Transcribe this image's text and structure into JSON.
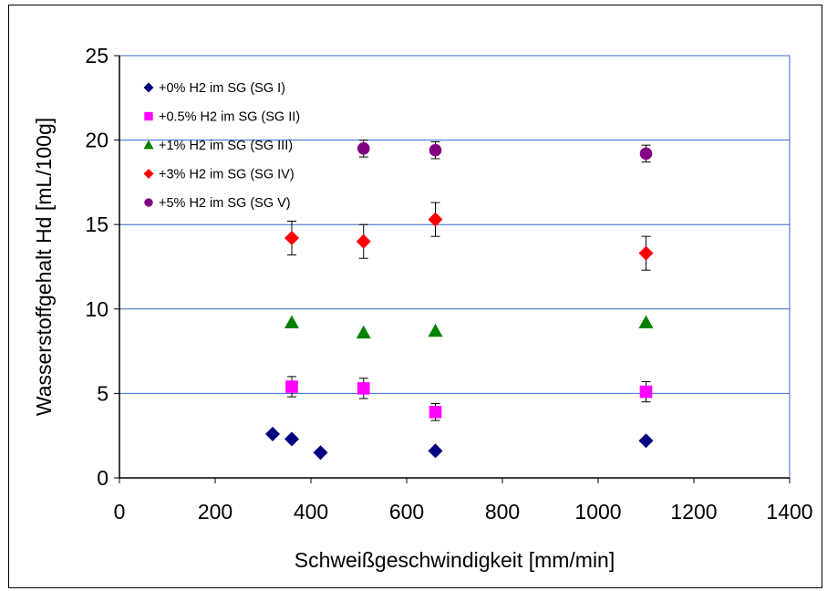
{
  "chart_data": {
    "type": "scatter",
    "xlabel": "Schweißgeschwindigkeit [mm/min]",
    "ylabel": "Wasserstoffgehalt Hd [mL/100g]",
    "xlim": [
      0,
      1400
    ],
    "ylim": [
      0,
      25
    ],
    "x_ticks": [
      0,
      200,
      400,
      600,
      800,
      1000,
      1200,
      1400
    ],
    "y_ticks": [
      0,
      5,
      10,
      15,
      20,
      25
    ],
    "x_tick_labels": [
      "0",
      "200",
      "400",
      "600",
      "800",
      "1000",
      "1200",
      "1400"
    ],
    "y_tick_labels": [
      "0",
      "5",
      "10",
      "15",
      "20",
      "25"
    ],
    "gridlines": "horizontal major",
    "legend_position": "top-left",
    "series": [
      {
        "name": "+0% H2 im SG (SG I)",
        "marker": "diamond",
        "color": "#000080",
        "points": [
          {
            "x": 320,
            "y": 2.6
          },
          {
            "x": 360,
            "y": 2.3
          },
          {
            "x": 420,
            "y": 1.5
          },
          {
            "x": 660,
            "y": 1.6
          },
          {
            "x": 1100,
            "y": 2.2
          }
        ]
      },
      {
        "name": "+0.5% H2 im SG (SG II)",
        "marker": "square",
        "color": "#FF00FF",
        "points": [
          {
            "x": 360,
            "y": 5.4,
            "err": 0.6
          },
          {
            "x": 510,
            "y": 5.3,
            "err": 0.6
          },
          {
            "x": 660,
            "y": 3.9,
            "err": 0.5
          },
          {
            "x": 1100,
            "y": 5.1,
            "err": 0.6
          }
        ]
      },
      {
        "name": "+1% H2 im SG (SG III)",
        "marker": "triangle",
        "color": "#008000",
        "points": [
          {
            "x": 360,
            "y": 9.2
          },
          {
            "x": 510,
            "y": 8.6
          },
          {
            "x": 660,
            "y": 8.7
          },
          {
            "x": 1100,
            "y": 9.2
          }
        ]
      },
      {
        "name": "+3% H2 im SG (SG IV)",
        "marker": "diamond",
        "color": "#FF0000",
        "points": [
          {
            "x": 360,
            "y": 14.2,
            "err": 1.0
          },
          {
            "x": 510,
            "y": 14.0,
            "err": 1.0
          },
          {
            "x": 660,
            "y": 15.3,
            "err": 1.0
          },
          {
            "x": 1100,
            "y": 13.3,
            "err": 1.0
          }
        ]
      },
      {
        "name": "+5% H2 im SG (SG V)",
        "marker": "circle",
        "color": "#800080",
        "points": [
          {
            "x": 510,
            "y": 19.5,
            "err": 0.5
          },
          {
            "x": 660,
            "y": 19.4,
            "err": 0.5
          },
          {
            "x": 1100,
            "y": 19.2,
            "err": 0.5
          }
        ]
      }
    ],
    "colors": {
      "gridline": "#3366CC",
      "axis": "#000000",
      "plot_border": "#3366CC"
    }
  }
}
